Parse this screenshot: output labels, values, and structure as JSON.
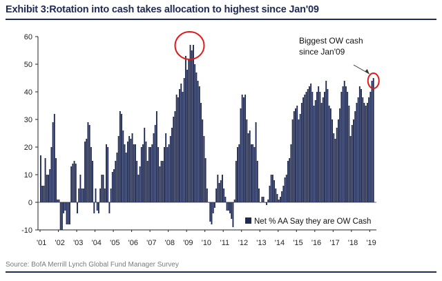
{
  "header": {
    "title": "Exhibit 3:Rotation into cash takes allocation to highest since Jan'09"
  },
  "footer": {
    "source": "Source:  BofA Merrill Lynch Global Fund Manager Survey"
  },
  "chart_data": {
    "type": "bar",
    "title": "Exhibit 3:Rotation into cash takes allocation to highest since Jan'09",
    "xlabel": "",
    "ylabel": "",
    "ylim": [
      -10,
      60
    ],
    "yticks": [
      -10,
      0,
      10,
      20,
      30,
      40,
      50,
      60
    ],
    "x_tick_labels": [
      "'01",
      "'02",
      "'03",
      "'04",
      "'05",
      "'06",
      "'07",
      "'08",
      "'09",
      "'10",
      "'11",
      "'12",
      "'13",
      "'14",
      "'15",
      "'16",
      "'17",
      "'18",
      "'19"
    ],
    "x_start": "2001-01",
    "bar_color": "#1f2a55",
    "grid": false,
    "legend": {
      "position": "bottom-right",
      "entries": [
        "Net % AA Say they are OW Cash"
      ]
    },
    "series": [
      {
        "name": "Net % AA Say they are OW Cash",
        "values": [
          17,
          6,
          6,
          16,
          10,
          10,
          12,
          20,
          29,
          32,
          16,
          1,
          1,
          -10,
          -10,
          -4,
          -3,
          -8,
          -8,
          -8,
          13,
          14,
          15,
          14,
          -4,
          5,
          10,
          5,
          5,
          22,
          23,
          29,
          28,
          20,
          15,
          -4,
          5,
          -3,
          -4,
          5,
          10,
          10,
          5,
          21,
          20,
          -4,
          5,
          11,
          12,
          15,
          18,
          24,
          33,
          32,
          26,
          21,
          18,
          22,
          24,
          23,
          25,
          21,
          21,
          15,
          10,
          13,
          20,
          21,
          27,
          22,
          15,
          20,
          20,
          21,
          25,
          28,
          33,
          20,
          13,
          15,
          15,
          20,
          25,
          20,
          21,
          24,
          27,
          31,
          33,
          39,
          38,
          41,
          43,
          40,
          45,
          53,
          48,
          52,
          57,
          55,
          57,
          50,
          47,
          44,
          42,
          36,
          30,
          24,
          16,
          5,
          0,
          -7,
          -8,
          -4,
          -2,
          5,
          10,
          7,
          8,
          10,
          5,
          2,
          -3,
          -3,
          -4,
          -6,
          -9,
          1,
          15,
          20,
          21,
          34,
          39,
          38,
          39,
          30,
          25,
          26,
          21,
          21,
          20,
          29,
          15,
          5,
          0,
          2,
          2,
          0,
          -1,
          1,
          6,
          10,
          10,
          8,
          5,
          3,
          1,
          2,
          4,
          6,
          9,
          10,
          15,
          16,
          21,
          30,
          33,
          34,
          35,
          30,
          32,
          36,
          38,
          39,
          40,
          41,
          42,
          43,
          40,
          35,
          37,
          40,
          42,
          40,
          36,
          38,
          40,
          44,
          41,
          35,
          34,
          30,
          25,
          23,
          27,
          30,
          34,
          40,
          42,
          44,
          42,
          40,
          35,
          24,
          28,
          30,
          33,
          36,
          38,
          42,
          41,
          38,
          36,
          35,
          36,
          38,
          40,
          44,
          45
        ]
      }
    ],
    "annotations": [
      {
        "text_lines": [
          "Biggest OW cash",
          "since Jan'09"
        ]
      }
    ],
    "highlights": [
      "2008-2009 peak",
      "2019 latest reading"
    ]
  }
}
